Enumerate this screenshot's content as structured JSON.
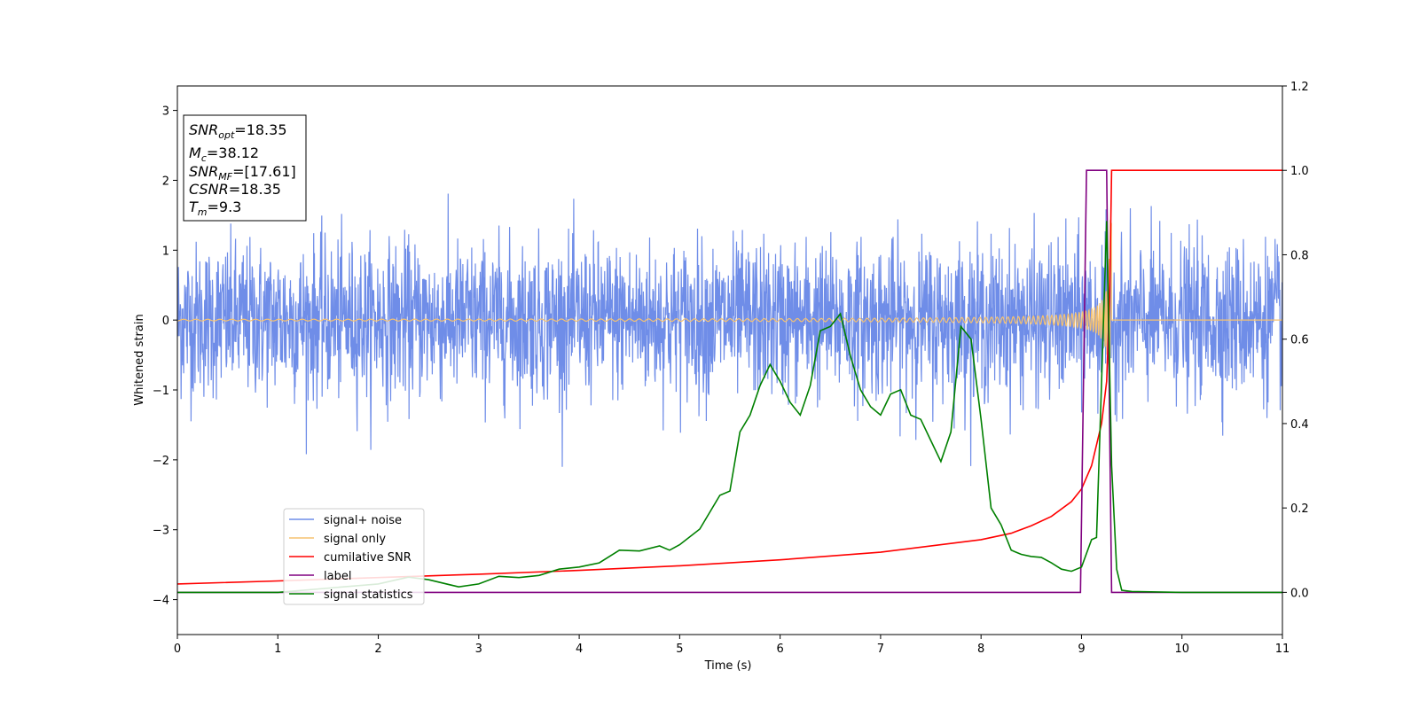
{
  "chart_data": {
    "type": "line",
    "xlabel": "Time (s)",
    "ylabel": "Whitened strain",
    "xlim": [
      0,
      11
    ],
    "ylim_left": [
      -4.5,
      3.35
    ],
    "ylim_right": [
      -0.1,
      1.2
    ],
    "x_ticks": [
      0,
      1,
      2,
      3,
      4,
      5,
      6,
      7,
      8,
      9,
      10,
      11
    ],
    "y_left_ticks": [
      -4,
      -3,
      -2,
      -1,
      0,
      1,
      2,
      3
    ],
    "y_right_ticks": [
      0.0,
      0.2,
      0.4,
      0.6,
      0.8,
      1.0,
      1.2
    ],
    "y_right_tick_labels": [
      "0.0",
      "0.2",
      "0.4",
      "0.6",
      "0.8",
      "1.0",
      "1.2"
    ],
    "legend_placement": "lower-left",
    "grid": false,
    "series": [
      {
        "name": "signal+ noise",
        "axis": "left",
        "color": "#6f8de8",
        "style": "noise",
        "noise_std": 0.55,
        "x_range": [
          0,
          11
        ]
      },
      {
        "name": "signal only",
        "axis": "left",
        "color": "#f6c270",
        "style": "chirp",
        "x_range": [
          0,
          9.3
        ],
        "peak_amplitude": 1.6
      },
      {
        "name": "cumilative SNR",
        "axis": "right",
        "color": "#ff0000",
        "x": [
          0,
          1,
          2,
          3,
          4,
          5,
          6,
          7,
          8,
          8.3,
          8.5,
          8.7,
          8.9,
          9.0,
          9.1,
          9.2,
          9.25,
          9.28,
          9.3,
          11
        ],
        "y": [
          0.02,
          0.027,
          0.035,
          0.043,
          0.052,
          0.063,
          0.077,
          0.095,
          0.125,
          0.14,
          0.158,
          0.18,
          0.215,
          0.245,
          0.3,
          0.4,
          0.5,
          0.7,
          1.0,
          1.0
        ]
      },
      {
        "name": "label",
        "axis": "right",
        "color": "#800080",
        "x": [
          0,
          8.99,
          9.05,
          9.25,
          9.3,
          11
        ],
        "y": [
          0.0,
          0.0,
          1.0,
          1.0,
          0.0,
          0.0
        ]
      },
      {
        "name": "signal statistics",
        "axis": "right",
        "color": "#008000",
        "x": [
          0,
          1,
          2,
          2.3,
          2.5,
          2.8,
          3.0,
          3.2,
          3.4,
          3.6,
          3.8,
          4.0,
          4.2,
          4.4,
          4.6,
          4.8,
          4.9,
          5.0,
          5.2,
          5.4,
          5.5,
          5.6,
          5.7,
          5.8,
          5.9,
          6.0,
          6.1,
          6.2,
          6.3,
          6.4,
          6.5,
          6.6,
          6.7,
          6.8,
          6.9,
          7.0,
          7.1,
          7.2,
          7.3,
          7.4,
          7.5,
          7.6,
          7.7,
          7.8,
          7.9,
          8.0,
          8.1,
          8.2,
          8.3,
          8.4,
          8.5,
          8.6,
          8.7,
          8.8,
          8.9,
          9.0,
          9.1,
          9.15,
          9.2,
          9.25,
          9.3,
          9.35,
          9.4,
          9.5,
          10,
          11
        ],
        "y": [
          0.0,
          0.0,
          0.02,
          0.036,
          0.03,
          0.013,
          0.02,
          0.038,
          0.035,
          0.04,
          0.055,
          0.06,
          0.07,
          0.1,
          0.098,
          0.11,
          0.1,
          0.113,
          0.15,
          0.23,
          0.24,
          0.38,
          0.42,
          0.49,
          0.54,
          0.5,
          0.45,
          0.42,
          0.49,
          0.62,
          0.63,
          0.66,
          0.56,
          0.48,
          0.44,
          0.42,
          0.47,
          0.48,
          0.42,
          0.41,
          0.36,
          0.31,
          0.38,
          0.63,
          0.6,
          0.41,
          0.2,
          0.16,
          0.1,
          0.09,
          0.085,
          0.083,
          0.07,
          0.055,
          0.05,
          0.06,
          0.125,
          0.13,
          0.5,
          0.88,
          0.3,
          0.055,
          0.005,
          0.002,
          0.0,
          0.0
        ]
      }
    ]
  },
  "info_box": {
    "snr_opt_label": "SNR",
    "snr_opt_sub": "opt",
    "snr_opt_value": "=18.35",
    "mc_label": "M",
    "mc_sub": "c",
    "mc_value": "=38.12",
    "snr_mf_label": "SNR",
    "snr_mf_sub": "MF",
    "snr_mf_value": "=[17.61]",
    "csnr_label": "CSNR",
    "csnr_value": "=18.35",
    "tm_label": "T",
    "tm_sub": "m",
    "tm_value": "=9.3"
  }
}
